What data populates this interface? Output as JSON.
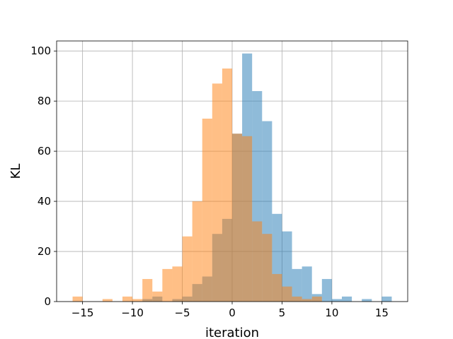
{
  "chart_data": {
    "type": "histogram",
    "xlabel": "iteration",
    "ylabel": "KL",
    "xlim": [
      -17.6,
      17.6
    ],
    "ylim": [
      0,
      104
    ],
    "xticks": [
      -15,
      -10,
      -5,
      0,
      5,
      10,
      15
    ],
    "xtick_labels": [
      "−15",
      "−10",
      "−5",
      "0",
      "5",
      "10",
      "15"
    ],
    "yticks": [
      0,
      20,
      40,
      60,
      80,
      100
    ],
    "ytick_labels": [
      "0",
      "20",
      "40",
      "60",
      "80",
      "100"
    ],
    "grid": true,
    "bin_edges": [
      -16,
      -15,
      -14,
      -13,
      -12,
      -11,
      -10,
      -9,
      -8,
      -7,
      -6,
      -5,
      -4,
      -3,
      -2,
      -1,
      0,
      1,
      2,
      3,
      4,
      5,
      6,
      7,
      8,
      9,
      10,
      11,
      12,
      13,
      14,
      15,
      16
    ],
    "series": [
      {
        "color": "#1f77b4",
        "alpha": 0.5,
        "values": [
          0,
          0,
          0,
          0,
          0,
          0,
          0,
          1,
          2,
          0,
          1,
          2,
          7,
          10,
          27,
          33,
          67,
          99,
          84,
          72,
          35,
          28,
          13,
          14,
          3,
          9,
          1,
          2,
          0,
          1,
          0,
          2
        ]
      },
      {
        "color": "#ff7f0e",
        "alpha": 0.5,
        "values": [
          2,
          0,
          0,
          1,
          0,
          2,
          1,
          9,
          4,
          13,
          14,
          26,
          40,
          73,
          87,
          93,
          67,
          66,
          32,
          27,
          11,
          6,
          2,
          1,
          2,
          0,
          0,
          0,
          0,
          0,
          0,
          0
        ]
      }
    ]
  }
}
